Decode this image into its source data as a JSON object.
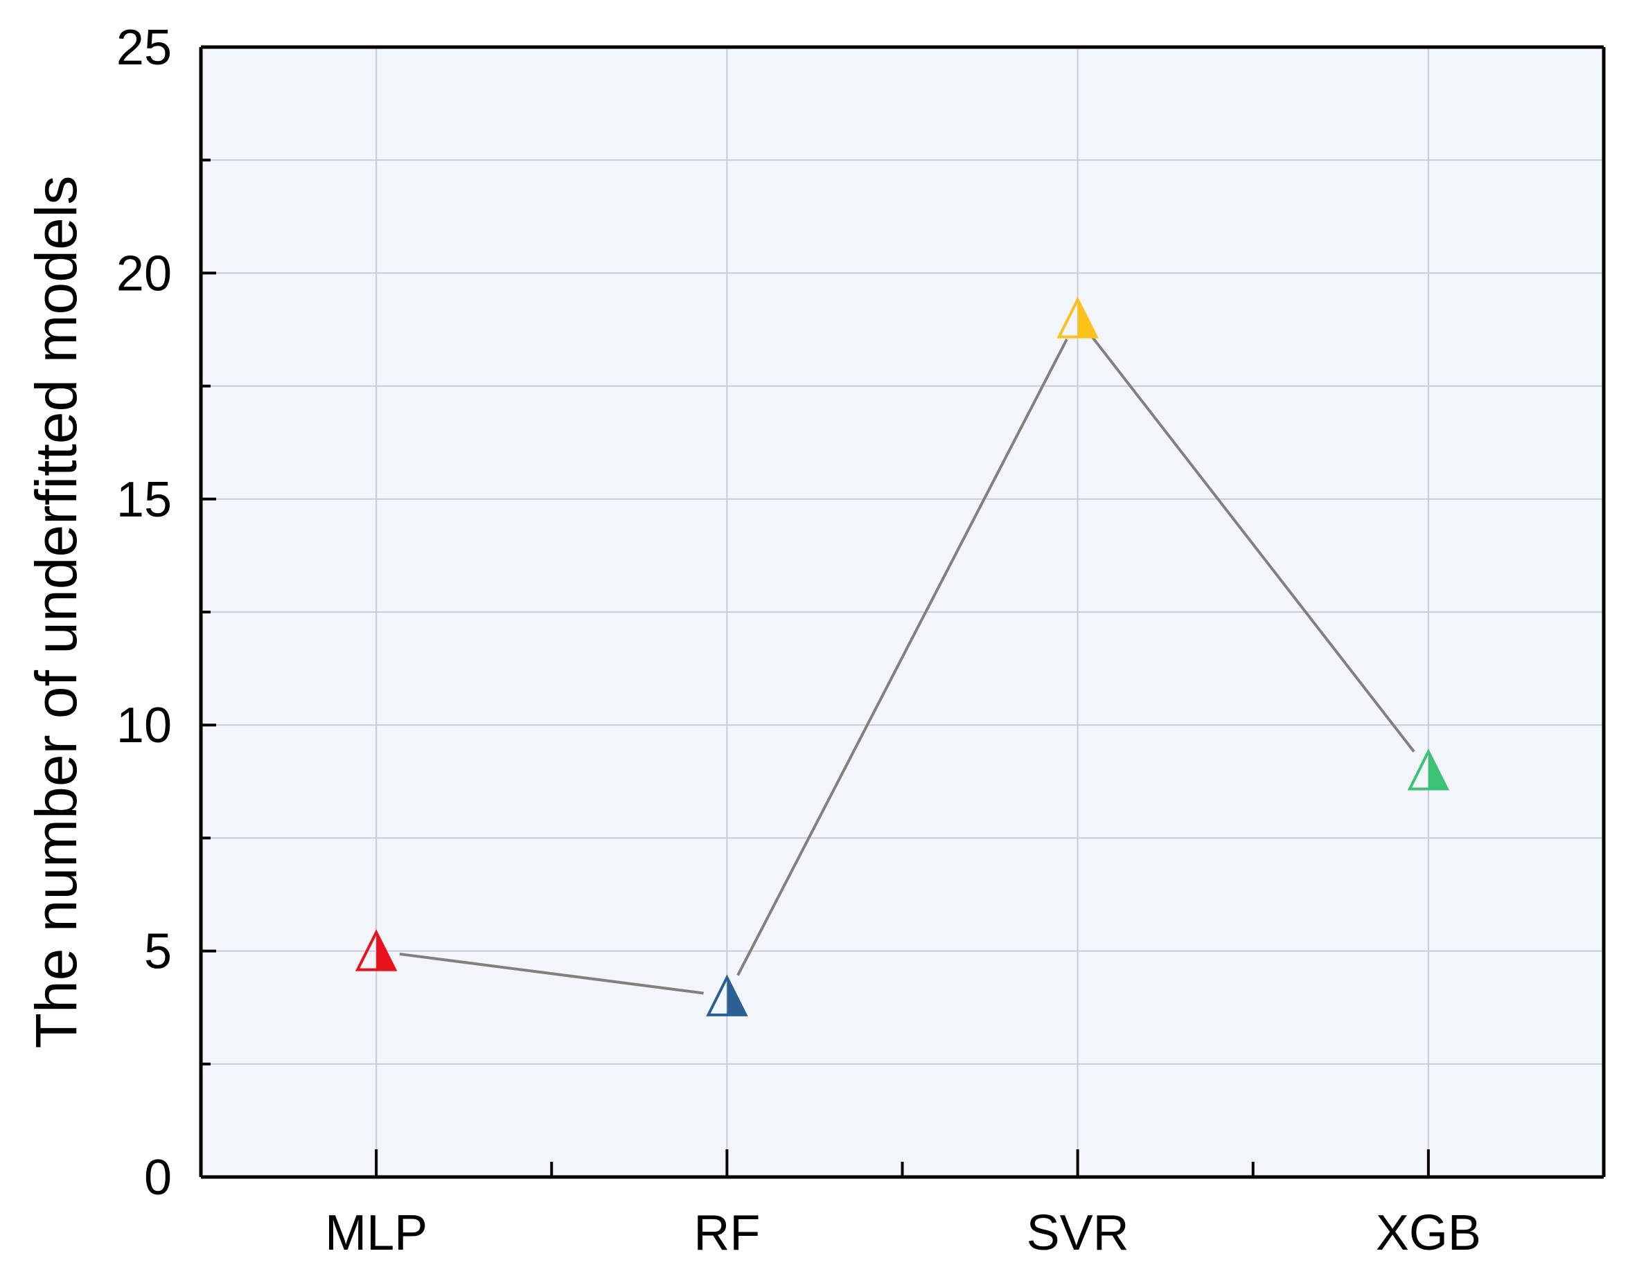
{
  "chart_data": {
    "type": "line",
    "title": "",
    "xlabel": "",
    "ylabel": "The number of underfitted models",
    "categories": [
      "MLP",
      "RF",
      "SVR",
      "XGB"
    ],
    "series": [
      {
        "values": [
          5,
          4,
          19,
          9
        ],
        "line_color": "#808080",
        "marker": "half-filled-triangle",
        "marker_colors": [
          "#e8121c",
          "#2c5f94",
          "#fbc21a",
          "#3cc275"
        ]
      }
    ],
    "ylim": [
      0,
      25
    ],
    "y_ticks": [
      "0",
      "5",
      "10",
      "15",
      "20",
      "25"
    ],
    "grid": true,
    "legend": "none",
    "plot_background": "#f2f5fa",
    "grid_color": "#c9cdd3",
    "axis_color": "#000000"
  }
}
